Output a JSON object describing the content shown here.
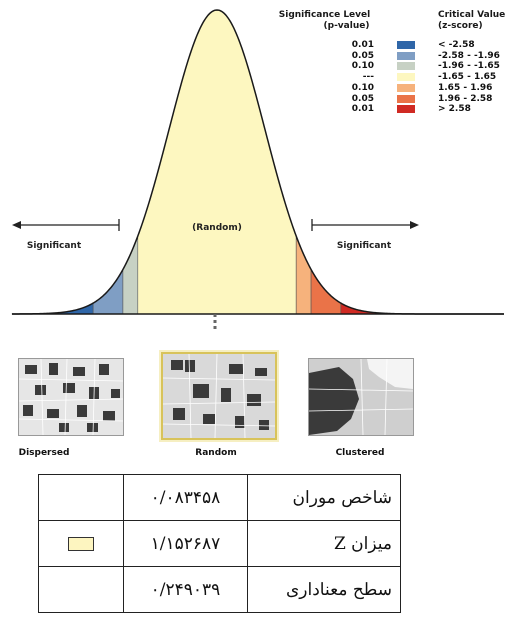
{
  "legend": {
    "significance_header": [
      "Significance Level",
      "(p-value)"
    ],
    "critical_header": [
      "Critical Value",
      "(z-score)"
    ],
    "rows": [
      {
        "p": "0.01",
        "z": "< -2.58",
        "color": "#2f66a8"
      },
      {
        "p": "0.05",
        "z": "-2.58 - -1.96",
        "color": "#7f9ec4"
      },
      {
        "p": "0.10",
        "z": "-1.96 - -1.65",
        "color": "#c7d1c4"
      },
      {
        "p": "---",
        "z": "-1.65 - 1.65",
        "color": "#fdf7c0"
      },
      {
        "p": "0.10",
        "z": "1.65 - 1.96",
        "color": "#f6b27c"
      },
      {
        "p": "0.05",
        "z": "1.96 - 2.58",
        "color": "#ea7348"
      },
      {
        "p": "0.01",
        "z": "> 2.58",
        "color": "#d02a23"
      }
    ]
  },
  "curve_labels": {
    "random": "(Random)",
    "significant_left": "Significant",
    "significant_right": "Significant"
  },
  "maps": [
    {
      "label": "Dispersed"
    },
    {
      "label": "Random"
    },
    {
      "label": "Clustered"
    }
  ],
  "table": [
    {
      "label": "شاخص موران",
      "value": "۰/۰۸۳۴۵۸",
      "symbol": ""
    },
    {
      "label": "میزان Z",
      "value": "۱/۱۵۲۶۸۷",
      "symbol": "result-swatch"
    },
    {
      "label": "سطح معناداری",
      "value": "۰/۲۴۹۰۳۹",
      "symbol": ""
    }
  ]
}
